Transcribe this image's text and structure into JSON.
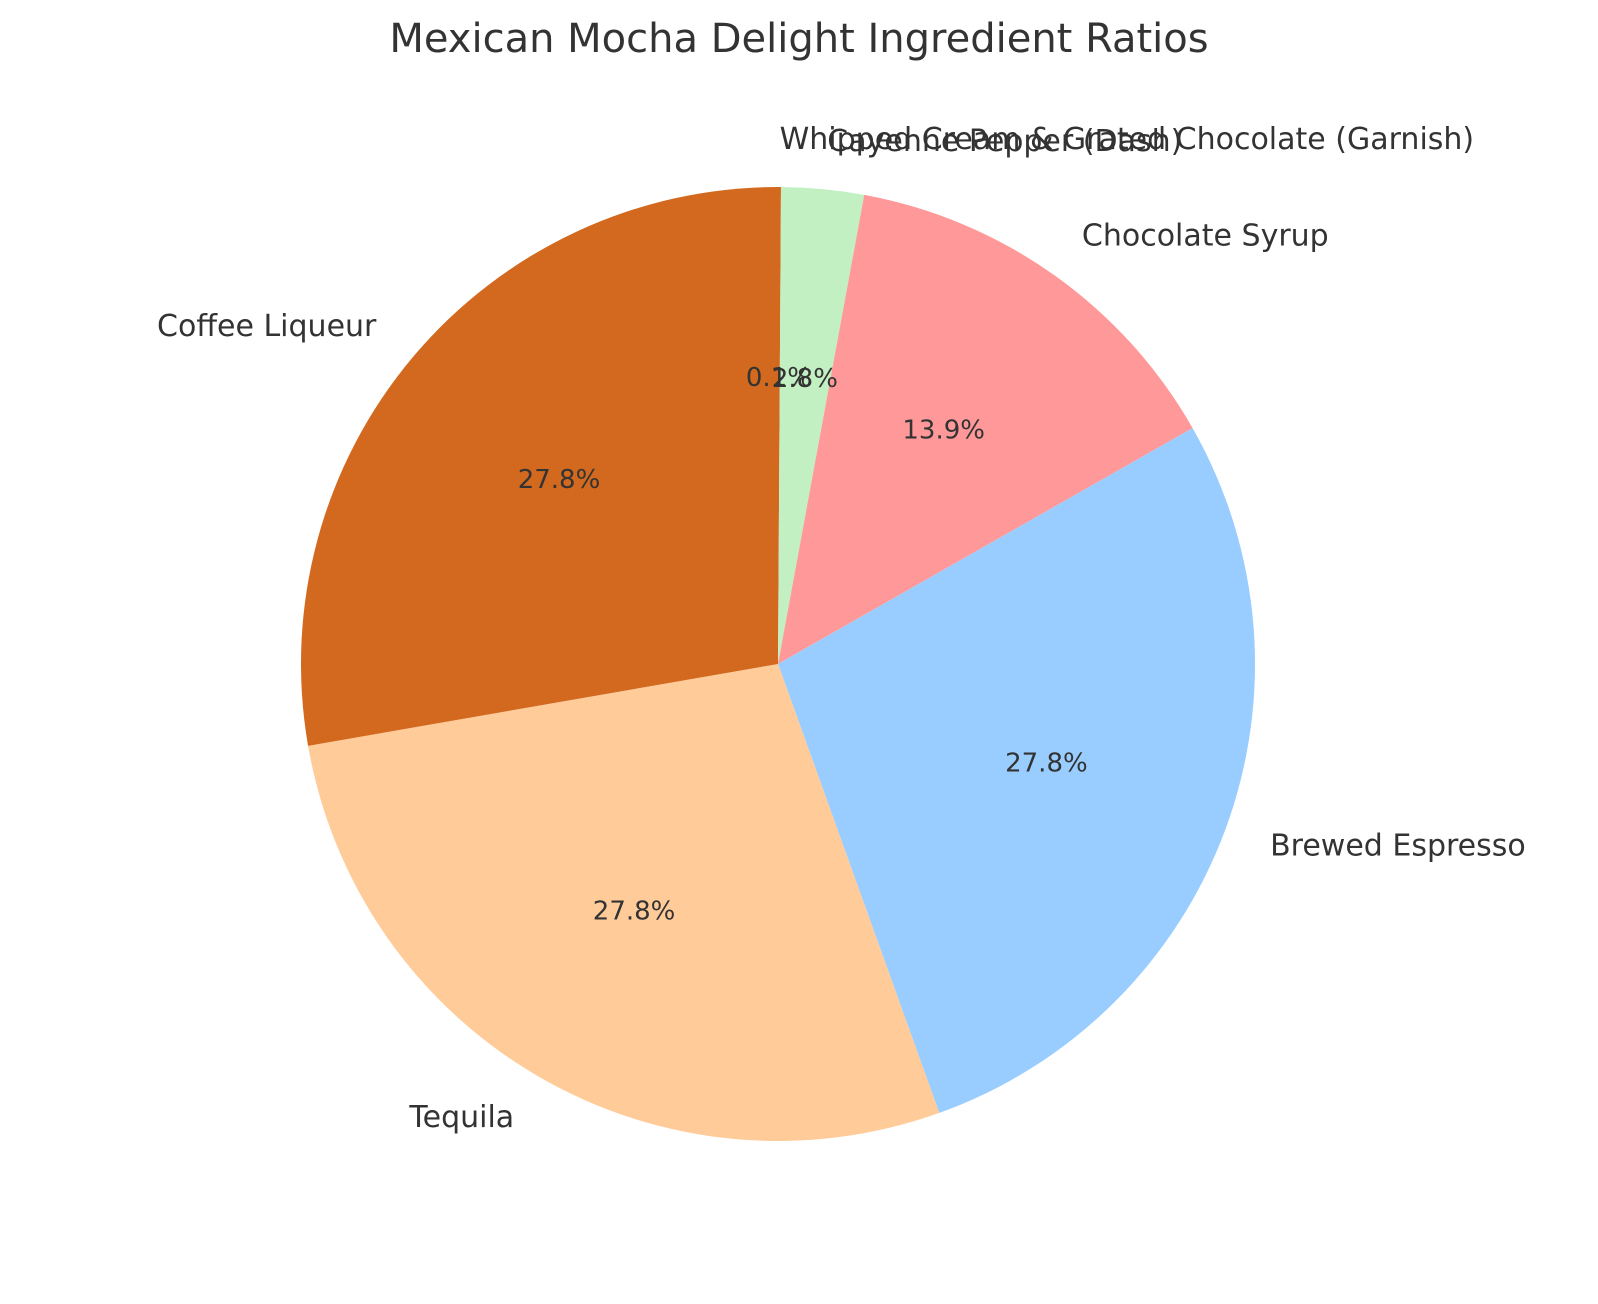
{
  "chart_data": {
    "type": "pie",
    "title": "Mexican Mocha Delight Ingredient Ratios",
    "start_angle_deg": 90,
    "direction": "clockwise",
    "slices": [
      {
        "label": "Whipped Cream & Grated Chocolate (Garnish)",
        "value": 0.1,
        "pct_label": "0.1%",
        "color": "#d2691e"
      },
      {
        "label": "Cayenne Pepper (Dash)",
        "value": 2.8,
        "pct_label": "2.8%",
        "color": "#c2f0c2"
      },
      {
        "label": "Chocolate Syrup",
        "value": 13.9,
        "pct_label": "13.9%",
        "color": "#ff9999"
      },
      {
        "label": "Brewed Espresso",
        "value": 27.8,
        "pct_label": "27.8%",
        "color": "#99ccff"
      },
      {
        "label": "Tequila",
        "value": 27.8,
        "pct_label": "27.8%",
        "color": "#ffcc99"
      },
      {
        "label": "Coffee Liqueur",
        "value": 27.8,
        "pct_label": "27.8%",
        "color": "#d2691e"
      }
    ]
  }
}
